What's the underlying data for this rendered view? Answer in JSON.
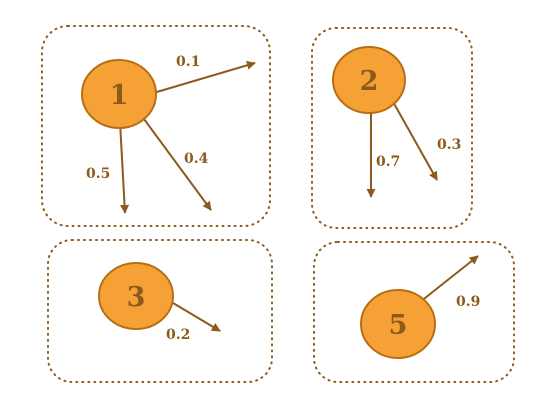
{
  "colors": {
    "node_fill": "#f6a135",
    "node_stroke": "#b86e14",
    "node_text": "#8c5a1a",
    "edge": "#8c5a1a",
    "edge_text": "#8c5a1a",
    "group_border": "#8c5a1a"
  },
  "nodes": [
    {
      "id": "1",
      "label": "1"
    },
    {
      "id": "2",
      "label": "2"
    },
    {
      "id": "3",
      "label": "3"
    },
    {
      "id": "5",
      "label": "5"
    }
  ],
  "edges": [
    {
      "from": "1",
      "label": "0.1"
    },
    {
      "from": "1",
      "label": "0.5"
    },
    {
      "from": "1",
      "label": "0.4"
    },
    {
      "from": "2",
      "label": "0.7"
    },
    {
      "from": "2",
      "label": "0.3"
    },
    {
      "from": "3",
      "label": "0.2"
    },
    {
      "from": "5",
      "label": "0.9"
    }
  ]
}
